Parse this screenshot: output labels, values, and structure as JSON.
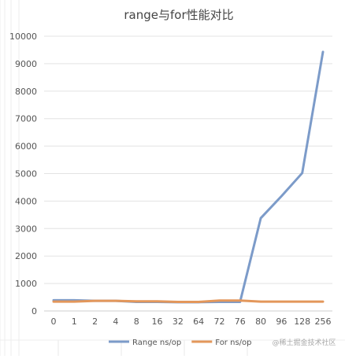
{
  "page": {
    "watermark": "@稀土掘金技术社区"
  },
  "chart_data": {
    "type": "line",
    "title": "range与for性能对比",
    "categories": [
      "0",
      "1",
      "2",
      "4",
      "8",
      "16",
      "32",
      "64",
      "72",
      "76",
      "80",
      "96",
      "128",
      "256"
    ],
    "ylim": [
      0,
      10000
    ],
    "yticks": [
      0,
      1000,
      2000,
      3000,
      4000,
      5000,
      6000,
      7000,
      8000,
      9000,
      10000
    ],
    "grid": "horizontal",
    "legend_position": "bottom",
    "series": [
      {
        "name": "Range ns/op",
        "color": "#7C9BC9",
        "values": [
          390,
          390,
          370,
          370,
          330,
          330,
          320,
          320,
          330,
          330,
          3380,
          4180,
          5020,
          9430
        ]
      },
      {
        "name": "For ns/op",
        "color": "#E3975B",
        "values": [
          340,
          340,
          370,
          370,
          350,
          350,
          330,
          330,
          380,
          380,
          340,
          340,
          340,
          340
        ]
      }
    ]
  }
}
